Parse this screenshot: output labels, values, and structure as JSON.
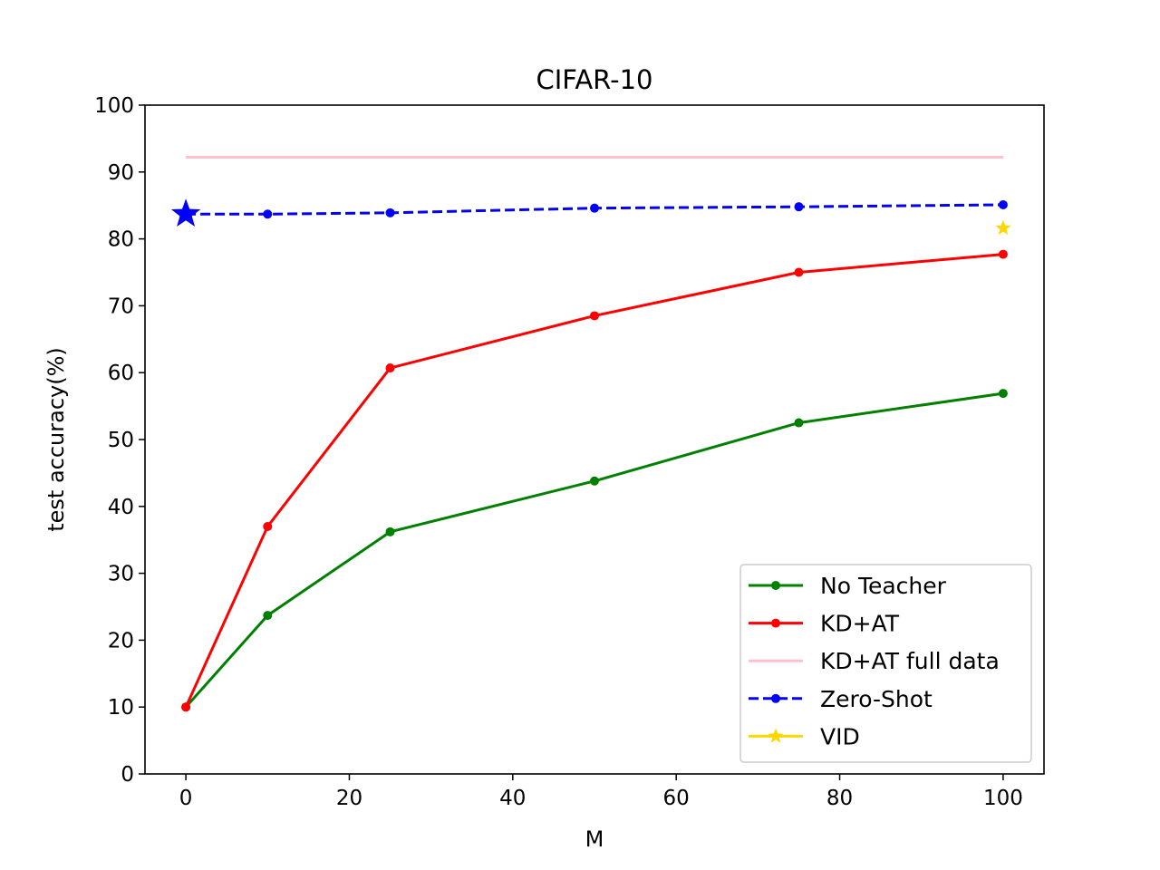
{
  "chart_data": {
    "type": "line",
    "title": "CIFAR-10",
    "xlabel": "M",
    "ylabel": "test accuracy(%)",
    "xlim": [
      -5,
      105
    ],
    "ylim": [
      0,
      100
    ],
    "xticks": [
      0,
      20,
      40,
      60,
      80,
      100
    ],
    "yticks": [
      0,
      10,
      20,
      30,
      40,
      50,
      60,
      70,
      80,
      90,
      100
    ],
    "grid": false,
    "legend_position": "bottom-right",
    "series": [
      {
        "name": "No Teacher",
        "color": "#008000",
        "line_style": "solid",
        "marker": "dot",
        "x": [
          0,
          10,
          25,
          50,
          75,
          100
        ],
        "y": [
          10.0,
          23.7,
          36.2,
          43.8,
          52.5,
          56.9
        ]
      },
      {
        "name": "KD+AT",
        "color": "#ff0000",
        "line_style": "solid",
        "marker": "dot",
        "x": [
          0,
          10,
          25,
          50,
          75,
          100
        ],
        "y": [
          10.0,
          37.0,
          60.7,
          68.5,
          75.0,
          77.7
        ]
      },
      {
        "name": "KD+AT full data",
        "color": "#ffc0cb",
        "line_style": "solid",
        "marker": "none",
        "x": [
          0,
          100
        ],
        "y": [
          92.2,
          92.2
        ]
      },
      {
        "name": "Zero-Shot",
        "color": "#0000ff",
        "line_style": "dashed",
        "marker": "dot",
        "x": [
          0,
          10,
          25,
          50,
          75,
          100
        ],
        "y": [
          83.7,
          83.7,
          83.9,
          84.6,
          84.8,
          85.1
        ]
      },
      {
        "name": "VID",
        "color": "#ffd700",
        "line_style": "solid",
        "marker": "star",
        "x": [
          100
        ],
        "y": [
          81.6
        ]
      }
    ],
    "annotations": [
      {
        "type": "star-marker",
        "color": "#0000ff",
        "x": 0,
        "y": 83.7
      }
    ]
  }
}
